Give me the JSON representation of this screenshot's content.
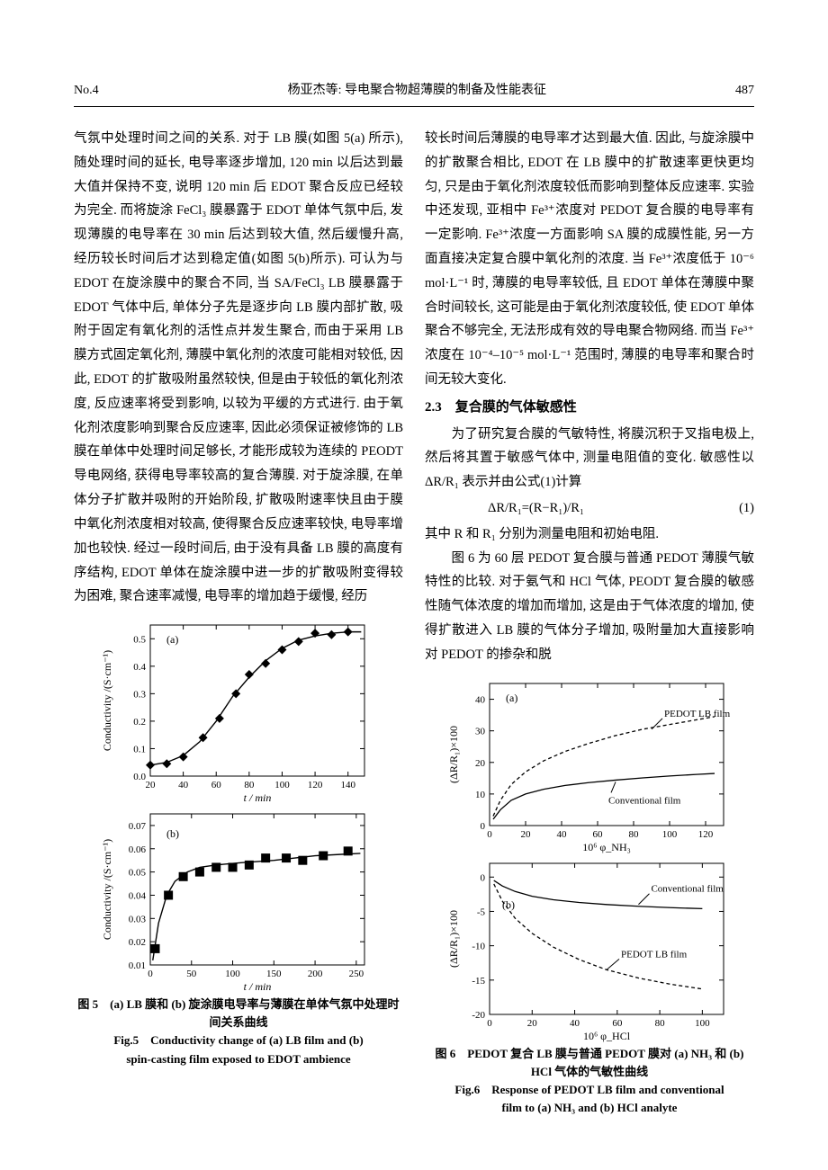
{
  "header": {
    "issue": "No.4",
    "running_title": "杨亚杰等: 导电聚合物超薄膜的制备及性能表征",
    "page_no": "487"
  },
  "left_col": {
    "para": "气氛中处理时间之间的关系. 对于 LB 膜(如图 5(a) 所示), 随处理时间的延长, 电导率逐步增加, 120 min 以后达到最大值并保持不变, 说明 120 min 后 EDOT 聚合反应已经较为完全. 而将旋涂 FeCl₃ 膜暴露于 EDOT 单体气氛中后, 发现薄膜的电导率在 30 min 后达到较大值, 然后缓慢升高, 经历较长时间后才达到稳定值(如图 5(b)所示). 可认为与 EDOT 在旋涂膜中的聚合不同, 当 SA/FeCl₃ LB 膜暴露于 EDOT 气体中后, 单体分子先是逐步向 LB 膜内部扩散, 吸附于固定有氧化剂的活性点并发生聚合, 而由于采用 LB 膜方式固定氧化剂, 薄膜中氧化剂的浓度可能相对较低, 因此, EDOT 的扩散吸附虽然较快, 但是由于较低的氧化剂浓度, 反应速率将受到影响, 以较为平缓的方式进行. 由于氧化剂浓度影响到聚合反应速率, 因此必须保证被修饰的 LB 膜在单体中处理时间足够长, 才能形成较为连续的 PEODT 导电网络, 获得电导率较高的复合薄膜. 对于旋涂膜, 在单体分子扩散并吸附的开始阶段, 扩散吸附速率快且由于膜中氧化剂浓度相对较高, 使得聚合反应速率较快, 电导率增加也较快. 经过一段时间后, 由于没有具备 LB 膜的高度有序结构, EDOT 单体在旋涂膜中进一步的扩散吸附变得较为困难, 聚合速率减慢, 电导率的增加趋于缓慢, 经历"
  },
  "right_col": {
    "para1": "较长时间后薄膜的电导率才达到最大值. 因此, 与旋涂膜中的扩散聚合相比, EDOT 在 LB 膜中的扩散速率更快更均匀, 只是由于氧化剂浓度较低而影响到整体反应速率. 实验中还发现, 亚相中 Fe³⁺浓度对 PEDOT 复合膜的电导率有一定影响. Fe³⁺浓度一方面影响 SA 膜的成膜性能, 另一方面直接决定复合膜中氧化剂的浓度. 当 Fe³⁺浓度低于 10⁻⁶ mol·L⁻¹ 时, 薄膜的电导率较低, 且 EDOT 单体在薄膜中聚合时间较长, 这可能是由于氧化剂浓度较低, 使 EDOT 单体聚合不够完全, 无法形成有效的导电聚合物网络. 而当 Fe³⁺浓度在 10⁻⁴–10⁻⁵ mol·L⁻¹ 范围时, 薄膜的电导率和聚合时间无较大变化.",
    "section_head": "2.3　复合膜的气体敏感性",
    "para2": "　　为了研究复合膜的气敏特性, 将膜沉积于叉指电极上, 然后将其置于敏感气体中, 测量电阻值的变化. 敏感性以 ΔR/R₁ 表示并由公式(1)计算",
    "formula": "ΔR/R₁=(R−R₁)/R₁",
    "formula_no": "(1)",
    "para3": "其中 R 和 R₁ 分别为测量电阻和初始电阻.",
    "para4": "　　图 6 为 60 层 PEDOT 复合膜与普通 PEDOT 薄膜气敏特性的比较. 对于氨气和 HCl 气体, PEODT 复合膜的敏感性随气体浓度的增加而增加, 这是由于气体浓度的增加, 使得扩散进入 LB 膜的气体分子增加, 吸附量加大直接影响对 PEDOT 的掺杂和脱"
  },
  "fig5": {
    "caption_cn": "图 5　(a) LB 膜和 (b) 旋涂膜电导率与薄膜在单体气氛中处理时间关系曲线",
    "caption_en1": "Fig.5　Conductivity change of (a) LB film and (b)",
    "caption_en2": "spin-casting film exposed to EDOT ambience",
    "panel_a": {
      "label": "(a)",
      "xlabel": "t / min",
      "ylabel": "Conductivity /(S·cm⁻¹)",
      "xlim": [
        20,
        150
      ],
      "xticks": [
        20,
        40,
        60,
        80,
        100,
        120,
        140
      ],
      "ylim": [
        0.0,
        0.55
      ],
      "yticks": [
        0.0,
        0.1,
        0.2,
        0.3,
        0.4,
        0.5
      ],
      "ytick_labels": [
        "0.0",
        "0.1",
        "0.2",
        "0.3",
        "0.4",
        "0.5"
      ],
      "points_x": [
        20,
        30,
        40,
        52,
        62,
        72,
        80,
        90,
        100,
        110,
        120,
        130,
        140
      ],
      "points_y": [
        0.04,
        0.045,
        0.07,
        0.14,
        0.21,
        0.3,
        0.37,
        0.41,
        0.46,
        0.49,
        0.52,
        0.515,
        0.525
      ],
      "curve_x": [
        20,
        30,
        40,
        50,
        60,
        70,
        80,
        90,
        100,
        110,
        120,
        130,
        140,
        148
      ],
      "curve_y": [
        0.04,
        0.05,
        0.075,
        0.125,
        0.2,
        0.29,
        0.36,
        0.42,
        0.465,
        0.495,
        0.51,
        0.52,
        0.525,
        0.525
      ],
      "marker": "diamond",
      "marker_size": 5,
      "line_width": 1.4,
      "axis_color": "#000000",
      "bg": "#ffffff"
    },
    "panel_b": {
      "label": "(b)",
      "xlabel": "t / min",
      "ylabel": "Conductivity /(S·cm⁻¹)",
      "xlim": [
        0,
        260
      ],
      "xticks": [
        0,
        50,
        100,
        150,
        200,
        250
      ],
      "ylim": [
        0.01,
        0.075
      ],
      "yticks": [
        0.01,
        0.02,
        0.03,
        0.04,
        0.05,
        0.06,
        0.07
      ],
      "ytick_labels": [
        "0.01",
        "0.02",
        "0.03",
        "0.04",
        "0.05",
        "0.06",
        "0.07"
      ],
      "points_x": [
        6,
        22,
        40,
        60,
        80,
        100,
        120,
        140,
        165,
        185,
        210,
        240
      ],
      "points_y": [
        0.017,
        0.04,
        0.048,
        0.05,
        0.052,
        0.052,
        0.053,
        0.056,
        0.056,
        0.055,
        0.057,
        0.059
      ],
      "curve_x": [
        3,
        10,
        20,
        30,
        45,
        60,
        80,
        110,
        150,
        200,
        255
      ],
      "curve_y": [
        0.012,
        0.028,
        0.04,
        0.046,
        0.05,
        0.052,
        0.053,
        0.054,
        0.055,
        0.057,
        0.058
      ],
      "marker": "square",
      "marker_size": 5,
      "line_width": 1.4,
      "axis_color": "#000000",
      "bg": "#ffffff"
    }
  },
  "fig6": {
    "caption_cn": "图 6　PEDOT 复合 LB 膜与普通 PEDOT 膜对 (a) NH₃ 和 (b) HCl 气体的气敏性曲线",
    "caption_en1": "Fig.6　Response of PEDOT LB film and conventional",
    "caption_en2": "film to (a) NH₃ and (b) HCl analyte",
    "panel_a": {
      "label": "(a)",
      "xlabel": "10⁶ φ_NH₃",
      "ylabel": "(ΔR/R₁)×100",
      "xlim": [
        0,
        130
      ],
      "xticks": [
        0,
        20,
        40,
        60,
        80,
        100,
        120
      ],
      "ylim": [
        0,
        45
      ],
      "yticks": [
        0,
        10,
        20,
        30,
        40
      ],
      "label_lb": "PEDOT LB film",
      "label_conv": "Conventional film",
      "lb_x": [
        2,
        6,
        12,
        20,
        30,
        42,
        55,
        70,
        85,
        100,
        115,
        125
      ],
      "lb_y": [
        3,
        8,
        13,
        17,
        20.5,
        23.5,
        26,
        28.5,
        30.5,
        32,
        33.5,
        34.5
      ],
      "conv_x": [
        2,
        6,
        12,
        20,
        30,
        42,
        55,
        70,
        85,
        100,
        115,
        125
      ],
      "conv_y": [
        2,
        5,
        8,
        10,
        11.5,
        12.7,
        13.6,
        14.4,
        15.1,
        15.7,
        16.2,
        16.5
      ],
      "line_width": 1.3,
      "dash": "4 3",
      "axis_color": "#000000",
      "bg": "#ffffff"
    },
    "panel_b": {
      "label": "(b)",
      "xlabel": "10⁶ φ_HCl",
      "ylabel": "(ΔR/R₁)×100",
      "xlim": [
        0,
        110
      ],
      "xticks": [
        0,
        20,
        40,
        60,
        80,
        100
      ],
      "ylim": [
        -20,
        2
      ],
      "yticks": [
        -20,
        -15,
        -10,
        -5,
        0
      ],
      "label_lb": "PEDOT LB film",
      "label_conv": "Conventional film",
      "conv_x": [
        2,
        6,
        12,
        20,
        30,
        42,
        55,
        70,
        85,
        100
      ],
      "conv_y": [
        -0.5,
        -1.3,
        -2.1,
        -2.8,
        -3.3,
        -3.7,
        -4.0,
        -4.25,
        -4.45,
        -4.6
      ],
      "lb_x": [
        2,
        6,
        12,
        20,
        30,
        42,
        55,
        70,
        85,
        100
      ],
      "lb_y": [
        -1,
        -3.5,
        -6,
        -8.2,
        -10.2,
        -12,
        -13.5,
        -14.7,
        -15.6,
        -16.3
      ],
      "line_width": 1.3,
      "dash": "4 3",
      "axis_color": "#000000",
      "bg": "#ffffff"
    }
  }
}
